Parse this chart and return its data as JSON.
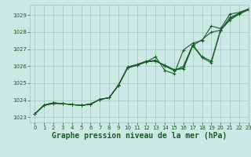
{
  "bg_color": "#cce8e4",
  "grid_color": "#9bbfb8",
  "line_color": "#1a5c2a",
  "title": "Graphe pression niveau de la mer (hPa)",
  "xlim": [
    -0.5,
    23
  ],
  "ylim": [
    1022.7,
    1029.6
  ],
  "yticks": [
    1023,
    1024,
    1025,
    1026,
    1027,
    1028,
    1029
  ],
  "xticks": [
    0,
    1,
    2,
    3,
    4,
    5,
    6,
    7,
    8,
    9,
    10,
    11,
    12,
    13,
    14,
    15,
    16,
    17,
    18,
    19,
    20,
    21,
    22,
    23
  ],
  "series": [
    [
      1023.2,
      1023.7,
      1023.8,
      1023.8,
      1023.75,
      1023.7,
      1023.75,
      1024.05,
      1024.15,
      1024.9,
      1025.95,
      1026.1,
      1026.3,
      1026.3,
      1026.05,
      1025.8,
      1025.85,
      1027.2,
      1026.5,
      1026.2,
      1028.1,
      1028.7,
      1029.05,
      1029.3
    ],
    [
      1023.2,
      1023.7,
      1023.85,
      1023.8,
      1023.75,
      1023.7,
      1023.78,
      1024.05,
      1024.15,
      1024.88,
      1025.93,
      1026.08,
      1026.28,
      1026.35,
      1026.0,
      1025.75,
      1026.0,
      1027.25,
      1026.55,
      1026.3,
      1028.15,
      1028.75,
      1029.1,
      1029.35
    ],
    [
      1023.2,
      1023.72,
      1023.85,
      1023.8,
      1023.75,
      1023.7,
      1023.78,
      1024.05,
      1024.15,
      1024.86,
      1025.9,
      1026.05,
      1026.25,
      1026.55,
      1025.75,
      1025.55,
      1026.95,
      1027.35,
      1027.5,
      1028.35,
      1028.2,
      1029.05,
      1029.15,
      1029.35
    ],
    [
      1023.2,
      1023.72,
      1023.85,
      1023.8,
      1023.75,
      1023.7,
      1023.78,
      1024.05,
      1024.15,
      1024.86,
      1025.9,
      1026.05,
      1026.25,
      1026.3,
      1026.05,
      1025.75,
      1025.9,
      1027.2,
      1027.55,
      1028.0,
      1028.1,
      1028.85,
      1029.1,
      1029.35
    ]
  ],
  "marker": "+",
  "markersize": 3,
  "linewidth": 0.8,
  "title_fontsize": 7,
  "tick_fontsize": 5,
  "title_color": "#1a5c2a"
}
